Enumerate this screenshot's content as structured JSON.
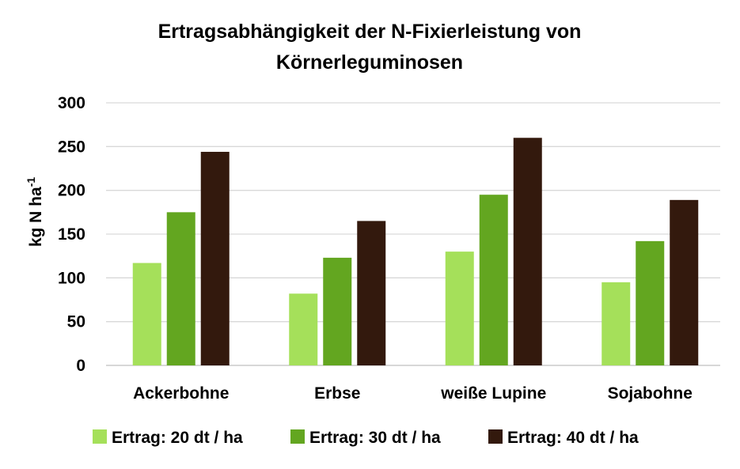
{
  "chart_data": {
    "type": "bar",
    "title_lines": [
      "Ertragsabhängigkeit der N-Fixierleistung von",
      "Körnerleguminosen"
    ],
    "ylabel_main": "kg N ha",
    "ylabel_sup": "-1",
    "xlabel": "",
    "ylim": [
      0,
      300
    ],
    "yticks": [
      "0",
      "50",
      "100",
      "150",
      "200",
      "250",
      "300"
    ],
    "ytick_values": [
      0,
      50,
      100,
      150,
      200,
      250,
      300
    ],
    "grid": true,
    "legend_position": "bottom",
    "categories": [
      "Ackerbohne",
      "Erbse",
      "weiße Lupine",
      "Sojabohne"
    ],
    "series": [
      {
        "name": "Ertrag: 20 dt / ha",
        "color": "#a5e05a",
        "values": [
          117,
          82,
          130,
          95
        ]
      },
      {
        "name": "Ertrag: 30 dt / ha",
        "color": "#63a620",
        "values": [
          175,
          123,
          195,
          142
        ]
      },
      {
        "name": "Ertrag: 40 dt / ha",
        "color": "#33190d",
        "values": [
          244,
          165,
          260,
          189
        ]
      }
    ]
  }
}
